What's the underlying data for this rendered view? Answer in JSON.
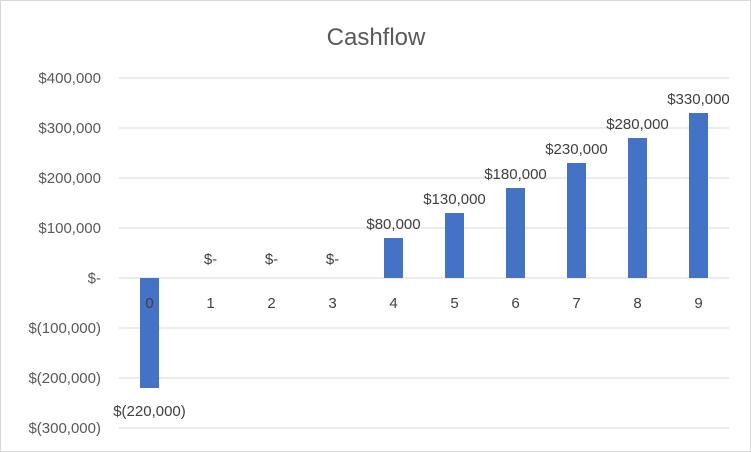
{
  "chart_data": {
    "type": "bar",
    "title": "Cashflow",
    "xlabel": "",
    "ylabel": "",
    "categories": [
      "0",
      "1",
      "2",
      "3",
      "4",
      "5",
      "6",
      "7",
      "8",
      "9"
    ],
    "values": [
      -220000,
      0,
      0,
      0,
      80000,
      130000,
      180000,
      230000,
      280000,
      330000
    ],
    "data_labels": [
      "$(220,000)",
      "$-",
      "$-",
      "$-",
      "$80,000",
      "$130,000",
      "$180,000",
      "$230,000",
      "$280,000",
      "$330,000"
    ],
    "yticks": [
      400000,
      300000,
      200000,
      100000,
      0,
      -100000,
      -200000,
      -300000
    ],
    "ytick_labels": [
      "$400,000",
      "$300,000",
      "$200,000",
      "$100,000",
      "$-",
      "$(100,000)",
      "$(200,000)",
      "$(300,000)"
    ],
    "ylim": [
      -300000,
      400000
    ],
    "grid": true,
    "legend": "none",
    "colors": {
      "bar": "#4472C4",
      "gridline": "#D9D9D9",
      "text": "#595959"
    }
  }
}
